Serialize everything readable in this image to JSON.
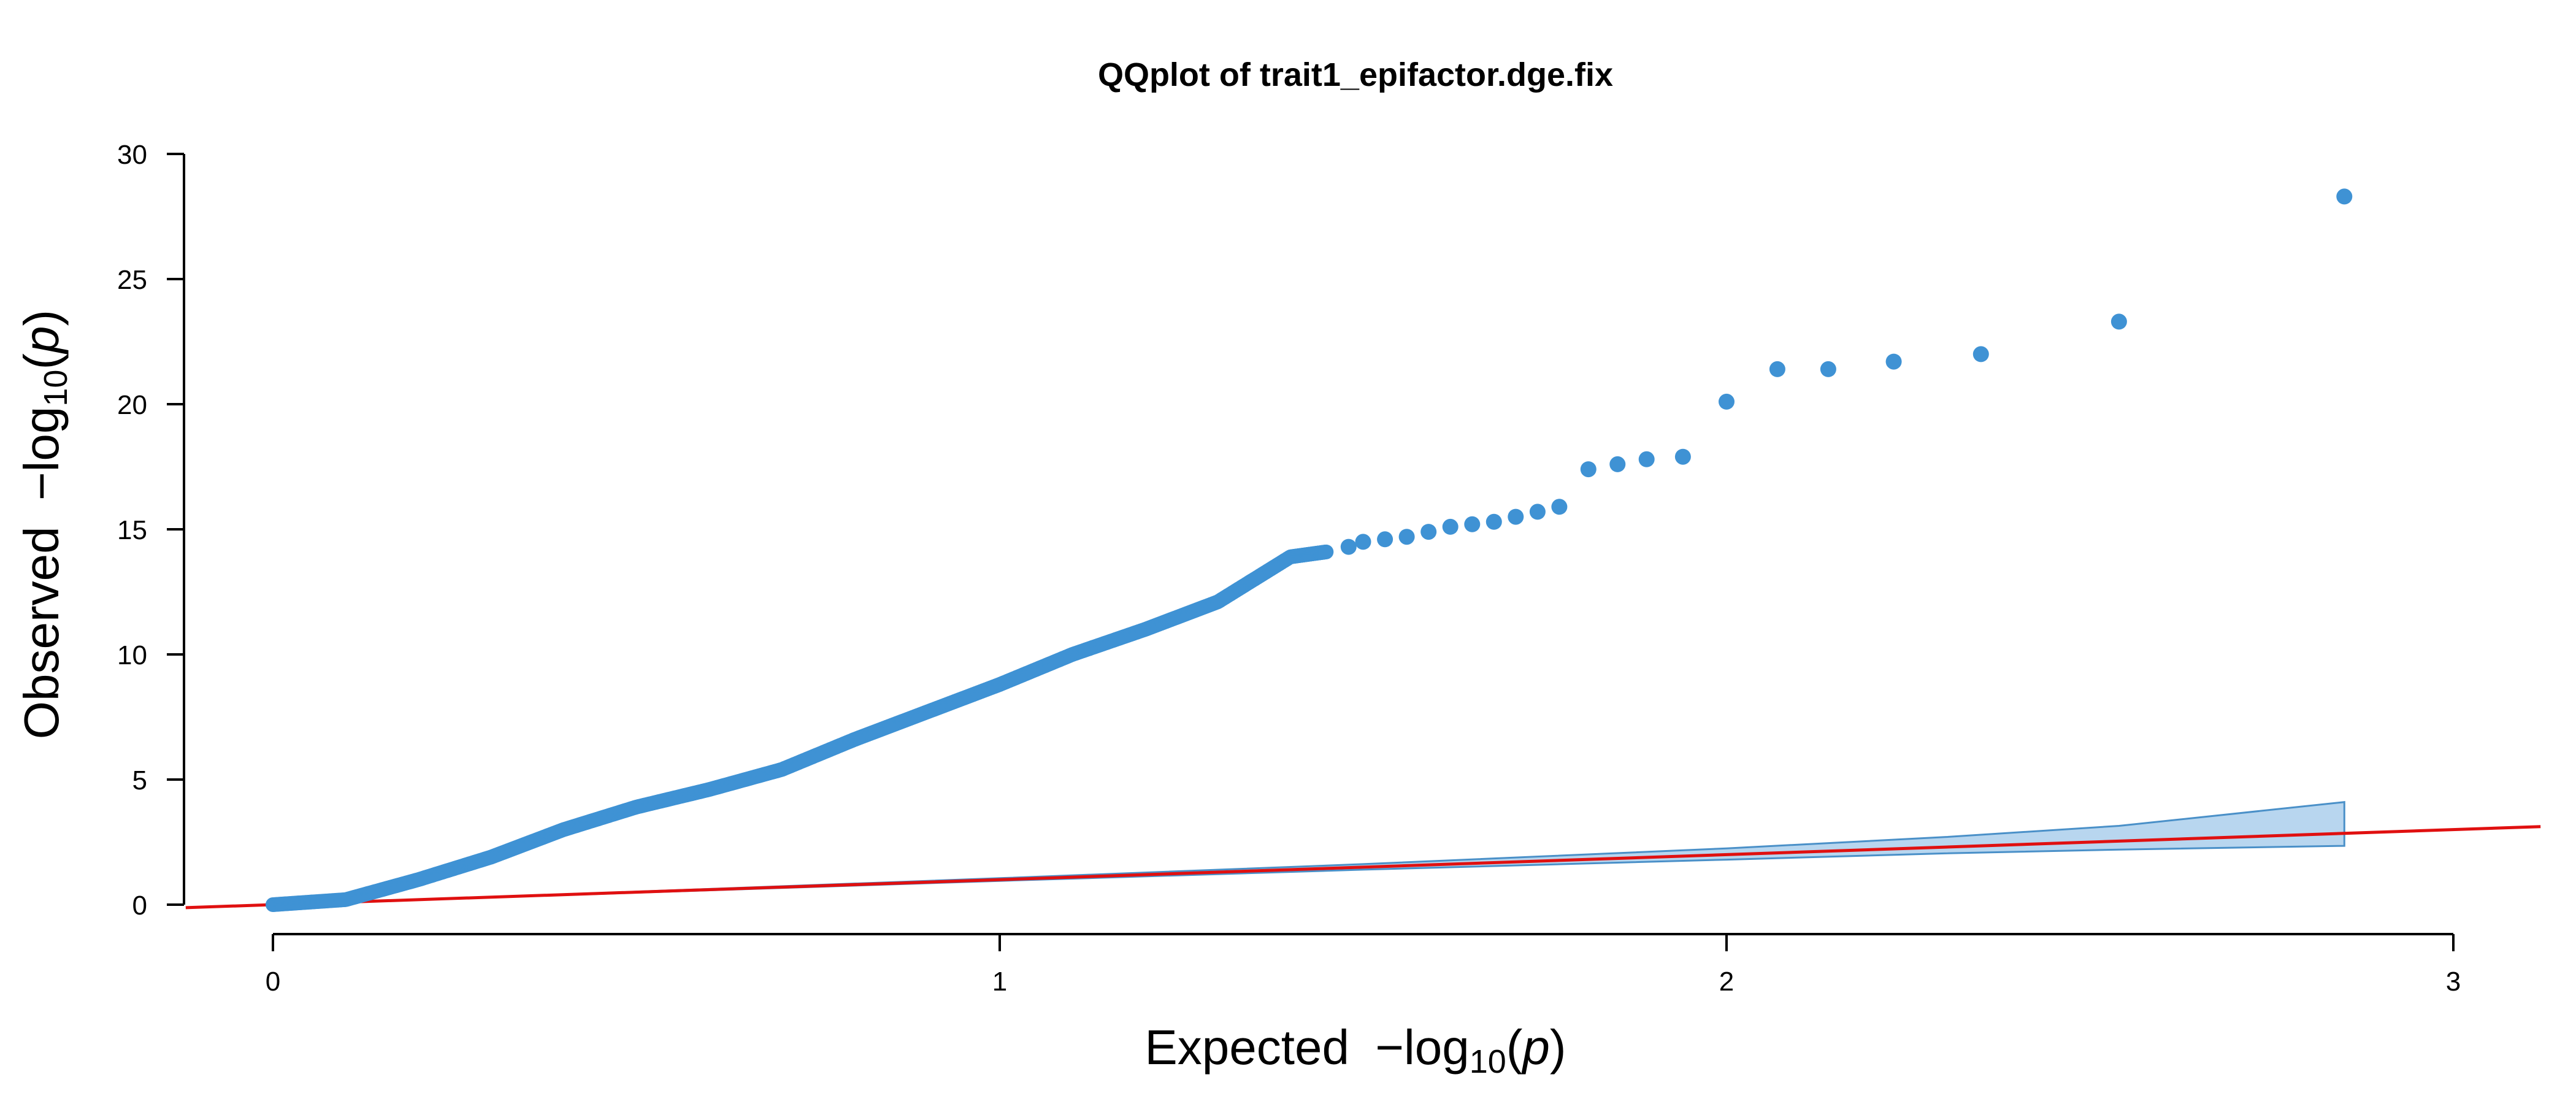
{
  "chart_data": {
    "type": "scatter",
    "title": "QQplot of trait1_epifactor.dge.fix",
    "xlabel": {
      "prefix": "Expected",
      "minus": "−log",
      "sub": "10",
      "open": "(",
      "var": "p",
      "close": ")"
    },
    "ylabel": {
      "prefix": "Observed",
      "minus": "−log",
      "sub": "10",
      "open": "(",
      "var": "p",
      "close": ")"
    },
    "xlim": [
      -0.12,
      3.12
    ],
    "ylim": [
      0,
      30
    ],
    "x_axis_range": [
      0,
      3
    ],
    "xticks": [
      0,
      1,
      2,
      3
    ],
    "xtick_labels": [
      "0",
      "1",
      "2",
      "3"
    ],
    "yticks": [
      0,
      5,
      10,
      15,
      20,
      25,
      30
    ],
    "ytick_labels": [
      "0",
      "5",
      "10",
      "15",
      "20",
      "25",
      "30"
    ],
    "point_color": "#3f92d4",
    "reference_line": {
      "color": "#e01010",
      "slope": 1,
      "intercept": 0
    },
    "confidence_band": {
      "fill": "#b8d6ef",
      "stroke": "#4a90c8",
      "x": [
        0,
        0.5,
        1.0,
        1.5,
        2.0,
        2.3,
        2.54,
        2.85
      ],
      "upper": [
        0,
        0.52,
        1.06,
        1.62,
        2.25,
        2.7,
        3.15,
        4.1
      ],
      "lower": [
        0,
        0.48,
        0.95,
        1.4,
        1.8,
        2.05,
        2.2,
        2.35
      ]
    },
    "series": [
      {
        "dense_segments": [
          [
            0.0,
            0.0,
            0.1,
            0.2
          ],
          [
            0.1,
            0.2,
            0.2,
            1.0
          ],
          [
            0.2,
            1.0,
            0.3,
            1.9
          ],
          [
            0.3,
            1.9,
            0.4,
            3.0
          ],
          [
            0.4,
            3.0,
            0.5,
            3.9
          ],
          [
            0.5,
            3.9,
            0.6,
            4.6
          ],
          [
            0.6,
            4.6,
            0.7,
            5.4
          ],
          [
            0.7,
            5.4,
            0.8,
            6.6
          ],
          [
            0.8,
            6.6,
            0.9,
            7.7
          ],
          [
            0.9,
            7.7,
            1.0,
            8.8
          ],
          [
            1.0,
            8.8,
            1.1,
            10.0
          ],
          [
            1.1,
            10.0,
            1.2,
            11.0
          ],
          [
            1.2,
            11.0,
            1.3,
            12.1
          ],
          [
            1.3,
            12.1,
            1.4,
            13.9
          ],
          [
            1.4,
            13.9,
            1.45,
            14.1
          ]
        ],
        "points": [
          [
            1.48,
            14.3
          ],
          [
            1.5,
            14.5
          ],
          [
            1.53,
            14.6
          ],
          [
            1.56,
            14.7
          ],
          [
            1.59,
            14.9
          ],
          [
            1.62,
            15.1
          ],
          [
            1.65,
            15.2
          ],
          [
            1.68,
            15.3
          ],
          [
            1.71,
            15.5
          ],
          [
            1.74,
            15.7
          ],
          [
            1.77,
            15.9
          ],
          [
            1.81,
            17.4
          ],
          [
            1.85,
            17.6
          ],
          [
            1.89,
            17.8
          ],
          [
            1.94,
            17.9
          ],
          [
            2.0,
            20.1
          ],
          [
            2.07,
            21.4
          ],
          [
            2.14,
            21.4
          ],
          [
            2.23,
            21.7
          ],
          [
            2.35,
            22.0
          ],
          [
            2.54,
            23.3
          ],
          [
            2.85,
            28.3
          ]
        ]
      }
    ]
  }
}
